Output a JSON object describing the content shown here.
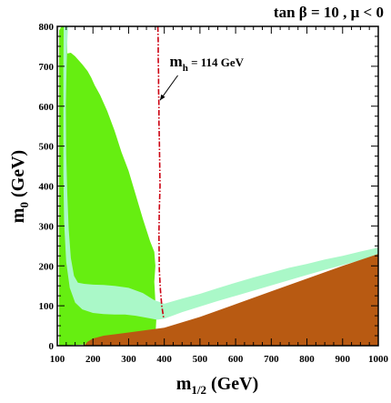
{
  "chart_data": {
    "type": "area",
    "title": "tan β = 10 ,  μ < 0",
    "xlabel": {
      "main": "m",
      "sub": "1/2",
      "unit": " (GeV)"
    },
    "ylabel": {
      "main": "m",
      "sub": "0",
      "unit": " (GeV)"
    },
    "xlim": [
      100,
      1000
    ],
    "ylim": [
      0,
      800
    ],
    "xticks": [
      100,
      200,
      300,
      400,
      500,
      600,
      700,
      800,
      900,
      1000
    ],
    "yticks": [
      0,
      100,
      200,
      300,
      400,
      500,
      600,
      700,
      800
    ],
    "grid": false,
    "colors": {
      "green_region": "#66ee11",
      "light_band": "#aaf8c8",
      "brown_region": "#b85a12",
      "higgs_line": "#cc0011",
      "frame": "#000000"
    },
    "regions": [
      {
        "id": "green_region",
        "color": "#66ee11",
        "polygon": [
          [
            105,
            0
          ],
          [
            105,
            790
          ],
          [
            112,
            800
          ],
          [
            128,
            800
          ],
          [
            128,
            732
          ],
          [
            138,
            734
          ],
          [
            150,
            725
          ],
          [
            170,
            705
          ],
          [
            185,
            688
          ],
          [
            195,
            672
          ],
          [
            205,
            652
          ],
          [
            220,
            628
          ],
          [
            240,
            588
          ],
          [
            260,
            540
          ],
          [
            280,
            485
          ],
          [
            300,
            438
          ],
          [
            320,
            378
          ],
          [
            340,
            318
          ],
          [
            360,
            262
          ],
          [
            372,
            235
          ],
          [
            375,
            200
          ],
          [
            372,
            160
          ],
          [
            375,
            110
          ],
          [
            378,
            70
          ],
          [
            376,
            40
          ],
          [
            368,
            20
          ],
          [
            355,
            12
          ],
          [
            300,
            8
          ],
          [
            250,
            6
          ],
          [
            200,
            4
          ],
          [
            150,
            2
          ],
          [
            110,
            0
          ]
        ]
      },
      {
        "id": "light_band_1",
        "color": "#aaf8c8",
        "polygon": [
          [
            118,
            800
          ],
          [
            130,
            800
          ],
          [
            128,
            760
          ],
          [
            126,
            700
          ],
          [
            124,
            600
          ],
          [
            125,
            480
          ],
          [
            128,
            380
          ],
          [
            132,
            290
          ],
          [
            138,
            220
          ],
          [
            147,
            175
          ],
          [
            158,
            158
          ],
          [
            175,
            155
          ],
          [
            200,
            153
          ],
          [
            230,
            152
          ],
          [
            260,
            150
          ],
          [
            300,
            145
          ],
          [
            340,
            132
          ],
          [
            370,
            115
          ],
          [
            400,
            105
          ],
          [
            450,
            118
          ],
          [
            500,
            130
          ],
          [
            550,
            144
          ],
          [
            600,
            158
          ],
          [
            650,
            171
          ],
          [
            700,
            183
          ],
          [
            750,
            195
          ],
          [
            800,
            205
          ],
          [
            850,
            216
          ],
          [
            900,
            225
          ],
          [
            950,
            236
          ],
          [
            1000,
            246
          ],
          [
            1000,
            225
          ],
          [
            950,
            214
          ],
          [
            900,
            202
          ],
          [
            850,
            190
          ],
          [
            800,
            177
          ],
          [
            750,
            164
          ],
          [
            700,
            151
          ],
          [
            650,
            138
          ],
          [
            600,
            125
          ],
          [
            550,
            112
          ],
          [
            500,
            98
          ],
          [
            450,
            84
          ],
          [
            420,
            74
          ],
          [
            400,
            68
          ],
          [
            380,
            65
          ],
          [
            350,
            70
          ],
          [
            320,
            75
          ],
          [
            290,
            78
          ],
          [
            260,
            78
          ],
          [
            230,
            79
          ],
          [
            200,
            82
          ],
          [
            170,
            91
          ],
          [
            150,
            108
          ],
          [
            135,
            145
          ],
          [
            125,
            210
          ],
          [
            119,
            310
          ],
          [
            117,
            430
          ],
          [
            117,
            560
          ],
          [
            117,
            700
          ]
        ]
      },
      {
        "id": "brown_region",
        "color": "#b85a12",
        "polygon": [
          [
            175,
            0
          ],
          [
            185,
            10
          ],
          [
            200,
            18
          ],
          [
            230,
            25
          ],
          [
            300,
            33
          ],
          [
            400,
            45
          ],
          [
            500,
            72
          ],
          [
            600,
            104
          ],
          [
            700,
            136
          ],
          [
            800,
            168
          ],
          [
            900,
            200
          ],
          [
            1000,
            230
          ],
          [
            1000,
            0
          ]
        ]
      }
    ],
    "lines": [
      {
        "id": "higgs_limit",
        "name": "m_h = 114 GeV",
        "color": "#cc0011",
        "style": "dash-dot",
        "x": [
          382,
          383,
          383,
          384,
          384,
          385,
          385,
          386,
          387,
          388,
          386,
          385,
          386,
          389,
          393,
          398
        ],
        "y": [
          800,
          760,
          720,
          680,
          640,
          600,
          560,
          520,
          460,
          400,
          340,
          280,
          190,
          140,
          100,
          70
        ]
      }
    ],
    "annotations": [
      {
        "id": "higgs_label",
        "main": "m",
        "sub": "h",
        "rest": "  = 114 GeV",
        "x": 415,
        "y": 700,
        "arrow_to": [
          388,
          615
        ]
      }
    ]
  }
}
